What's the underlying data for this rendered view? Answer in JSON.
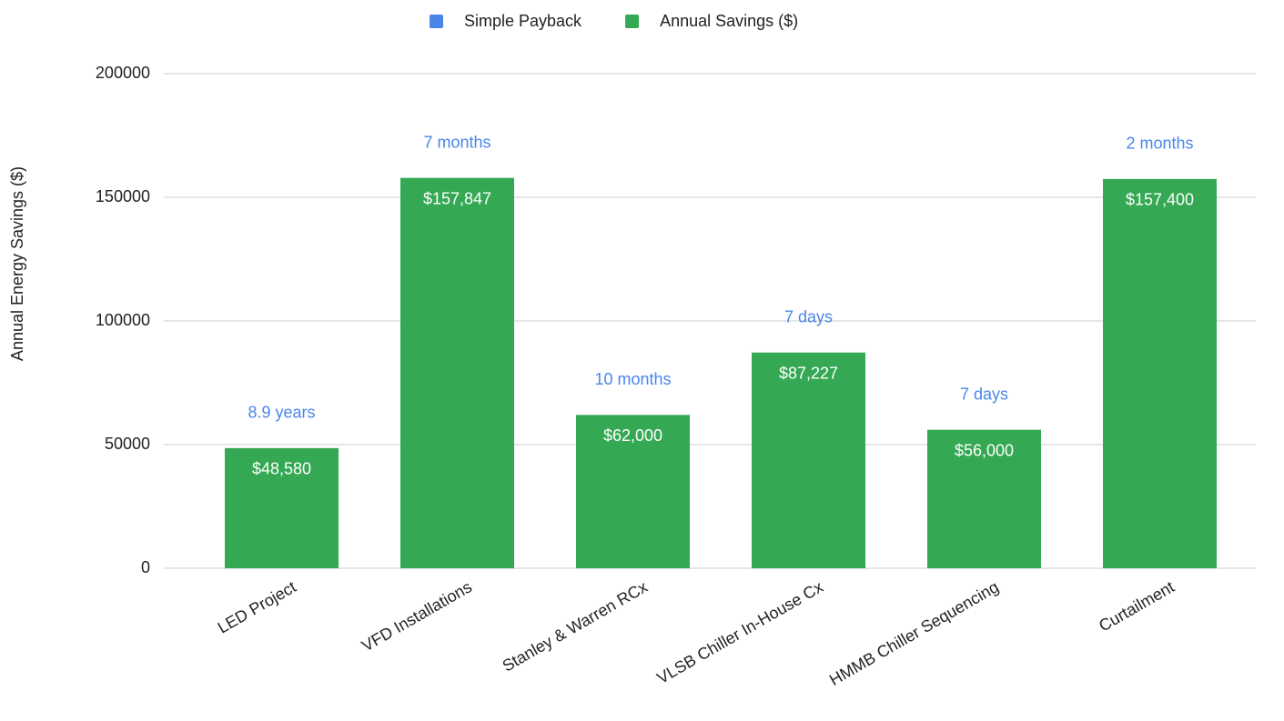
{
  "chart_data": {
    "type": "bar",
    "stacked": true,
    "y_label": "Annual Energy Savings ($)",
    "categories": [
      "LED Project",
      "VFD Installations",
      "Stanley & Warren RCx",
      "VLSB Chiller In-House Cx",
      "HMMB Chiller Sequencing",
      "Curtailment"
    ],
    "series": [
      {
        "name": "Simple Payback",
        "color": "#4a86e8",
        "values": [
          8.9,
          0.58,
          0.83,
          0.019,
          0.019,
          0.17
        ],
        "value_labels": [
          "8.9 years",
          "7 months",
          "10 months",
          "7 days",
          "7 days",
          "2 months"
        ]
      },
      {
        "name": "Annual Savings ($)",
        "color": "#34a853",
        "values": [
          48580,
          157847,
          62000,
          87227,
          56000,
          157400
        ],
        "value_labels": [
          "$48,580",
          "$157,847",
          "$62,000",
          "$87,227",
          "$56,000",
          "$157,400"
        ]
      }
    ],
    "ylim": [
      0,
      200000
    ],
    "yticks": [
      0,
      50000,
      100000,
      150000,
      200000
    ],
    "grid": true,
    "legend": "top"
  }
}
